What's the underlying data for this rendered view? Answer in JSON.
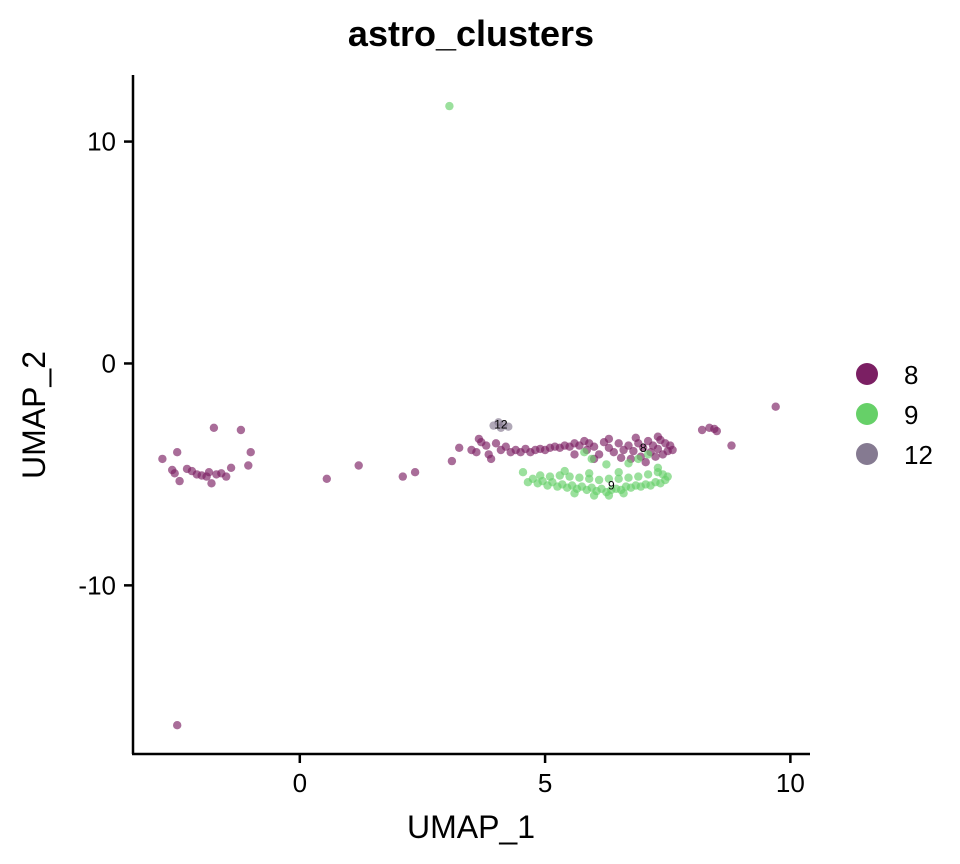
{
  "chart_data": {
    "type": "scatter",
    "title": "astro_clusters",
    "xlabel": "UMAP_1",
    "ylabel": "UMAP_2",
    "xlim": [
      -3.4,
      10.4
    ],
    "ylim": [
      -17.6,
      13
    ],
    "xticks": [
      0,
      5,
      10
    ],
    "xtick_labels": [
      "0",
      "5",
      "10"
    ],
    "yticks": [
      -10,
      0,
      10
    ],
    "ytick_labels": [
      "-10",
      "0",
      "10"
    ],
    "grid": false,
    "legend_position": "right",
    "series": [
      {
        "name": "8",
        "color": "#7b1f63",
        "points": [
          [
            -2.8,
            -4.3
          ],
          [
            -2.6,
            -4.8
          ],
          [
            -2.55,
            -4.95
          ],
          [
            -2.45,
            -5.3
          ],
          [
            -2.5,
            -4.0
          ],
          [
            -2.3,
            -4.75
          ],
          [
            -2.2,
            -4.85
          ],
          [
            -2.1,
            -5.0
          ],
          [
            -2.0,
            -5.05
          ],
          [
            -1.9,
            -5.1
          ],
          [
            -1.85,
            -4.9
          ],
          [
            -1.8,
            -5.4
          ],
          [
            -1.7,
            -5.0
          ],
          [
            -1.6,
            -4.95
          ],
          [
            -1.5,
            -5.1
          ],
          [
            -1.4,
            -4.7
          ],
          [
            -1.75,
            -2.9
          ],
          [
            -1.2,
            -3.0
          ],
          [
            -1.0,
            -4.0
          ],
          [
            -1.05,
            -4.6
          ],
          [
            0.55,
            -5.2
          ],
          [
            1.2,
            -4.6
          ],
          [
            2.1,
            -5.1
          ],
          [
            2.35,
            -4.9
          ],
          [
            3.1,
            -4.4
          ],
          [
            3.25,
            -3.8
          ],
          [
            3.5,
            -3.9
          ],
          [
            3.6,
            -4.0
          ],
          [
            3.65,
            -3.4
          ],
          [
            3.7,
            -3.55
          ],
          [
            3.8,
            -3.7
          ],
          [
            3.85,
            -4.1
          ],
          [
            3.9,
            -4.3
          ],
          [
            4.0,
            -3.6
          ],
          [
            4.1,
            -3.9
          ],
          [
            4.2,
            -3.75
          ],
          [
            4.3,
            -4.0
          ],
          [
            4.4,
            -3.9
          ],
          [
            4.5,
            -4.0
          ],
          [
            4.6,
            -3.85
          ],
          [
            4.7,
            -4.0
          ],
          [
            4.8,
            -3.9
          ],
          [
            4.9,
            -3.85
          ],
          [
            5.0,
            -3.9
          ],
          [
            5.1,
            -3.8
          ],
          [
            5.2,
            -3.75
          ],
          [
            5.3,
            -3.8
          ],
          [
            5.4,
            -3.7
          ],
          [
            5.5,
            -3.75
          ],
          [
            5.6,
            -3.6
          ],
          [
            5.7,
            -3.7
          ],
          [
            5.8,
            -3.5
          ],
          [
            5.85,
            -3.9
          ],
          [
            5.9,
            -3.6
          ],
          [
            6.0,
            -3.75
          ],
          [
            6.1,
            -4.1
          ],
          [
            6.2,
            -3.55
          ],
          [
            6.3,
            -3.8
          ],
          [
            6.4,
            -4.0
          ],
          [
            6.5,
            -3.6
          ],
          [
            6.55,
            -4.25
          ],
          [
            6.6,
            -3.9
          ],
          [
            6.7,
            -3.7
          ],
          [
            6.75,
            -4.3
          ],
          [
            6.8,
            -3.95
          ],
          [
            6.9,
            -3.6
          ],
          [
            6.95,
            -4.2
          ],
          [
            7.0,
            -3.8
          ],
          [
            7.05,
            -4.45
          ],
          [
            7.1,
            -3.5
          ],
          [
            7.15,
            -4.0
          ],
          [
            7.2,
            -3.7
          ],
          [
            7.25,
            -4.2
          ],
          [
            7.3,
            -3.85
          ],
          [
            7.35,
            -3.45
          ],
          [
            7.4,
            -4.1
          ],
          [
            7.45,
            -3.6
          ],
          [
            7.5,
            -3.95
          ],
          [
            7.55,
            -3.7
          ],
          [
            7.6,
            -3.9
          ],
          [
            6.3,
            -3.4
          ],
          [
            6.85,
            -3.35
          ],
          [
            7.3,
            -3.3
          ],
          [
            5.6,
            -4.1
          ],
          [
            6.0,
            -4.3
          ],
          [
            8.2,
            -3.0
          ],
          [
            8.35,
            -2.9
          ],
          [
            8.45,
            -2.95
          ],
          [
            8.5,
            -3.05
          ],
          [
            8.8,
            -3.7
          ],
          [
            9.7,
            -1.95
          ],
          [
            -2.5,
            -16.3
          ]
        ]
      },
      {
        "name": "9",
        "color": "#66d068",
        "points": [
          [
            3.05,
            11.6
          ],
          [
            4.55,
            -4.9
          ],
          [
            4.65,
            -5.35
          ],
          [
            4.75,
            -5.2
          ],
          [
            4.85,
            -5.4
          ],
          [
            4.95,
            -5.3
          ],
          [
            5.05,
            -5.5
          ],
          [
            5.15,
            -5.35
          ],
          [
            5.25,
            -5.55
          ],
          [
            5.35,
            -5.45
          ],
          [
            5.45,
            -5.6
          ],
          [
            5.55,
            -5.5
          ],
          [
            5.65,
            -5.65
          ],
          [
            5.75,
            -5.55
          ],
          [
            5.85,
            -5.7
          ],
          [
            5.95,
            -5.6
          ],
          [
            6.05,
            -5.75
          ],
          [
            6.15,
            -5.65
          ],
          [
            6.25,
            -5.8
          ],
          [
            6.35,
            -5.7
          ],
          [
            6.45,
            -5.65
          ],
          [
            6.55,
            -5.7
          ],
          [
            6.65,
            -5.55
          ],
          [
            6.75,
            -5.6
          ],
          [
            6.85,
            -5.5
          ],
          [
            6.95,
            -5.55
          ],
          [
            7.05,
            -5.45
          ],
          [
            7.15,
            -5.5
          ],
          [
            7.25,
            -5.35
          ],
          [
            7.35,
            -5.4
          ],
          [
            7.45,
            -5.25
          ],
          [
            7.5,
            -5.1
          ],
          [
            7.4,
            -5.0
          ],
          [
            7.3,
            -4.9
          ],
          [
            7.1,
            -5.0
          ],
          [
            6.9,
            -5.1
          ],
          [
            6.7,
            -5.15
          ],
          [
            6.5,
            -5.2
          ],
          [
            6.3,
            -5.2
          ],
          [
            6.1,
            -5.25
          ],
          [
            5.9,
            -5.2
          ],
          [
            5.7,
            -5.15
          ],
          [
            5.5,
            -5.1
          ],
          [
            5.3,
            -5.05
          ],
          [
            5.1,
            -5.1
          ],
          [
            4.9,
            -5.05
          ],
          [
            5.4,
            -4.85
          ],
          [
            5.9,
            -4.95
          ],
          [
            5.8,
            -4.0
          ],
          [
            5.95,
            -4.3
          ],
          [
            6.25,
            -4.55
          ],
          [
            6.5,
            -4.9
          ],
          [
            6.7,
            -4.5
          ],
          [
            6.9,
            -4.3
          ],
          [
            7.3,
            -4.7
          ],
          [
            7.1,
            -4.1
          ],
          [
            6.0,
            -5.95
          ],
          [
            6.3,
            -5.95
          ],
          [
            5.6,
            -5.85
          ],
          [
            6.6,
            -5.85
          ]
        ]
      },
      {
        "name": "12",
        "color": "#857a91",
        "points": [
          [
            3.95,
            -2.8
          ],
          [
            4.05,
            -2.65
          ],
          [
            4.15,
            -2.75
          ],
          [
            4.25,
            -2.85
          ],
          [
            4.1,
            -2.9
          ]
        ]
      }
    ],
    "cluster_labels": [
      {
        "text": "12",
        "x": 4.1,
        "y": -2.75
      },
      {
        "text": "8",
        "x": 7.0,
        "y": -3.8
      },
      {
        "text": "9",
        "x": 6.35,
        "y": -5.5
      }
    ]
  }
}
